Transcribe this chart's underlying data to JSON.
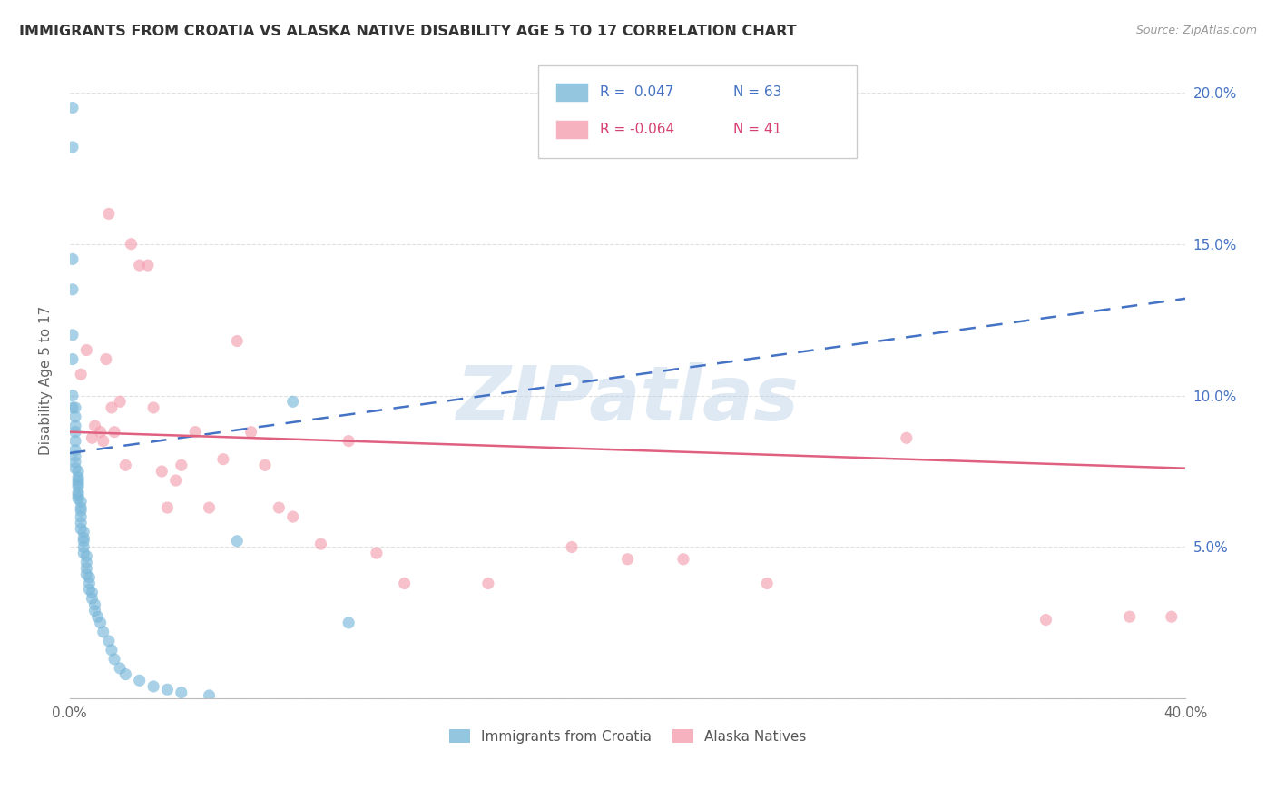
{
  "title": "IMMIGRANTS FROM CROATIA VS ALASKA NATIVE DISABILITY AGE 5 TO 17 CORRELATION CHART",
  "source": "Source: ZipAtlas.com",
  "ylabel": "Disability Age 5 to 17",
  "xlim": [
    0.0,
    0.4
  ],
  "ylim": [
    0.0,
    0.21
  ],
  "yticks": [
    0.0,
    0.05,
    0.1,
    0.15,
    0.2
  ],
  "ytick_labels": [
    "",
    "5.0%",
    "10.0%",
    "15.0%",
    "20.0%"
  ],
  "xticks": [
    0.0,
    0.08,
    0.16,
    0.24,
    0.32,
    0.4
  ],
  "xtick_labels": [
    "0.0%",
    "",
    "",
    "",
    "",
    "40.0%"
  ],
  "croatia_color": "#7ab8d9",
  "alaska_color": "#f4a0b0",
  "trendline_croatia_color": "#4472c4",
  "trendline_alaska_color": "#e06080",
  "watermark": "ZIPatlas",
  "legend_r_croatia": " 0.047",
  "legend_n_croatia": "63",
  "legend_r_alaska": "-0.064",
  "legend_n_alaska": "41",
  "croatia_x": [
    0.001,
    0.001,
    0.001,
    0.001,
    0.001,
    0.001,
    0.001,
    0.001,
    0.002,
    0.002,
    0.002,
    0.002,
    0.002,
    0.002,
    0.002,
    0.002,
    0.002,
    0.003,
    0.003,
    0.003,
    0.003,
    0.003,
    0.003,
    0.003,
    0.003,
    0.004,
    0.004,
    0.004,
    0.004,
    0.004,
    0.004,
    0.005,
    0.005,
    0.005,
    0.005,
    0.005,
    0.006,
    0.006,
    0.006,
    0.006,
    0.007,
    0.007,
    0.007,
    0.008,
    0.008,
    0.009,
    0.009,
    0.01,
    0.011,
    0.012,
    0.014,
    0.015,
    0.016,
    0.018,
    0.02,
    0.025,
    0.03,
    0.035,
    0.04,
    0.05,
    0.06,
    0.08,
    0.1
  ],
  "croatia_y": [
    0.195,
    0.182,
    0.145,
    0.135,
    0.12,
    0.112,
    0.1,
    0.096,
    0.096,
    0.093,
    0.09,
    0.088,
    0.085,
    0.082,
    0.08,
    0.078,
    0.076,
    0.075,
    0.073,
    0.072,
    0.071,
    0.07,
    0.068,
    0.067,
    0.066,
    0.065,
    0.063,
    0.062,
    0.06,
    0.058,
    0.056,
    0.055,
    0.053,
    0.052,
    0.05,
    0.048,
    0.047,
    0.045,
    0.043,
    0.041,
    0.04,
    0.038,
    0.036,
    0.035,
    0.033,
    0.031,
    0.029,
    0.027,
    0.025,
    0.022,
    0.019,
    0.016,
    0.013,
    0.01,
    0.008,
    0.006,
    0.004,
    0.003,
    0.002,
    0.001,
    0.052,
    0.098,
    0.025
  ],
  "alaska_x": [
    0.004,
    0.006,
    0.008,
    0.009,
    0.011,
    0.012,
    0.013,
    0.014,
    0.015,
    0.016,
    0.018,
    0.02,
    0.022,
    0.025,
    0.028,
    0.03,
    0.033,
    0.035,
    0.038,
    0.04,
    0.045,
    0.05,
    0.055,
    0.06,
    0.065,
    0.07,
    0.075,
    0.08,
    0.09,
    0.1,
    0.11,
    0.12,
    0.15,
    0.18,
    0.2,
    0.22,
    0.25,
    0.3,
    0.35,
    0.38,
    0.395
  ],
  "alaska_y": [
    0.107,
    0.115,
    0.086,
    0.09,
    0.088,
    0.085,
    0.112,
    0.16,
    0.096,
    0.088,
    0.098,
    0.077,
    0.15,
    0.143,
    0.143,
    0.096,
    0.075,
    0.063,
    0.072,
    0.077,
    0.088,
    0.063,
    0.079,
    0.118,
    0.088,
    0.077,
    0.063,
    0.06,
    0.051,
    0.085,
    0.048,
    0.038,
    0.038,
    0.05,
    0.046,
    0.046,
    0.038,
    0.086,
    0.026,
    0.027,
    0.027
  ],
  "trendline_croatia_start_x": 0.0,
  "trendline_croatia_start_y": 0.081,
  "trendline_croatia_end_x": 0.4,
  "trendline_croatia_end_y": 0.132,
  "trendline_alaska_start_x": 0.0,
  "trendline_alaska_start_y": 0.088,
  "trendline_alaska_end_x": 0.4,
  "trendline_alaska_end_y": 0.076
}
